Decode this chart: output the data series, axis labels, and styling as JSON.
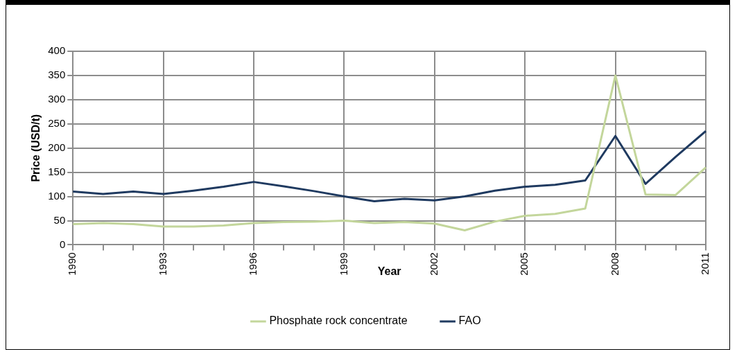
{
  "chart_data": {
    "type": "line",
    "categories": [
      "1990",
      null,
      null,
      "1993",
      null,
      null,
      "1996",
      null,
      null,
      "1999",
      null,
      null,
      "2002",
      null,
      null,
      "2005",
      null,
      null,
      "2008",
      null,
      null,
      "2011"
    ],
    "series": [
      {
        "name": "Phosphate rock concentrate",
        "color": "#c3d69b",
        "values": [
          43,
          45,
          43,
          38,
          38,
          40,
          45,
          47,
          48,
          50,
          45,
          47,
          44,
          30,
          48,
          60,
          64,
          75,
          350,
          104,
          103,
          160
        ]
      },
      {
        "name": "FAO",
        "color": "#1f3a60",
        "values": [
          110,
          105,
          110,
          105,
          112,
          120,
          130,
          121,
          111,
          100,
          90,
          95,
          92,
          100,
          112,
          120,
          124,
          133,
          225,
          126,
          182,
          235
        ]
      }
    ],
    "xlabel": "Year",
    "ylabel": "Price (USD/t)",
    "ylim": [
      0,
      400
    ],
    "yticks": [
      0,
      50,
      100,
      150,
      200,
      250,
      300,
      350,
      400
    ],
    "grid": true,
    "legend": "bottom",
    "marker": "none",
    "line_style": "solid"
  }
}
